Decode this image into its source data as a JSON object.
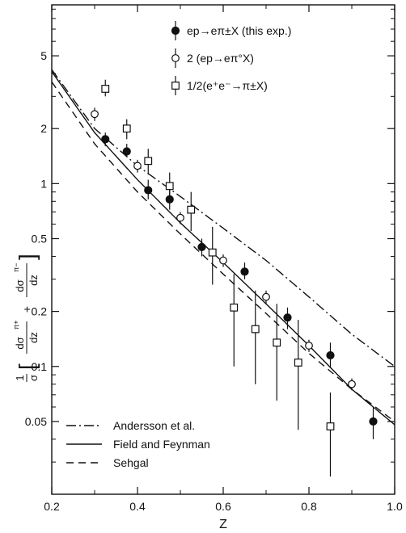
{
  "chart_data": {
    "type": "scatter",
    "xlabel": "Z",
    "ylabel": "1/σ [dσ^π+/dz + dσ^π−/dz]",
    "ylabel_parts": {
      "prefix_num": "1",
      "prefix_den": "σ",
      "term1_num": "dσ",
      "term1_sup": "π+",
      "term1_den": "dz",
      "plus": "+",
      "term2_num": "dσ",
      "term2_sup": "π−",
      "term2_den": "dz"
    },
    "xlim": [
      0.2,
      1.0
    ],
    "ylim": [
      0.02,
      9.5
    ],
    "yscale": "log",
    "xticks": [
      0.2,
      0.4,
      0.6,
      0.8,
      1.0
    ],
    "xtick_labels": [
      "0.2",
      "0.4",
      "0.6",
      "0.8",
      "1.0"
    ],
    "yticks": [
      5,
      2,
      1,
      0.5,
      0.2,
      0.1,
      0.05
    ],
    "ytick_labels": [
      "5",
      "2",
      "1",
      "0.5",
      "0.2",
      "0.1",
      "0.05"
    ],
    "grid": false,
    "series": [
      {
        "name": "ep→eπ±X (this exp.)",
        "marker": "filled-circle",
        "x": [
          0.325,
          0.375,
          0.425,
          0.475,
          0.55,
          0.65,
          0.75,
          0.85,
          0.95
        ],
        "y": [
          1.75,
          1.5,
          0.92,
          0.82,
          0.45,
          0.33,
          0.185,
          0.115,
          0.05
        ],
        "err_low": [
          1.6,
          1.4,
          0.82,
          0.72,
          0.4,
          0.3,
          0.16,
          0.098,
          0.04
        ],
        "err_high": [
          1.9,
          1.65,
          1.05,
          0.92,
          0.5,
          0.37,
          0.21,
          0.135,
          0.06
        ]
      },
      {
        "name": "2 (ep→eπ°X)",
        "marker": "open-circle",
        "x": [
          0.3,
          0.4,
          0.5,
          0.6,
          0.7,
          0.8,
          0.9
        ],
        "y": [
          2.4,
          1.25,
          0.65,
          0.38,
          0.24,
          0.13,
          0.08
        ],
        "err_low": [
          2.2,
          1.15,
          0.6,
          0.35,
          0.22,
          0.12,
          0.074
        ],
        "err_high": [
          2.6,
          1.35,
          0.7,
          0.41,
          0.26,
          0.14,
          0.086
        ]
      },
      {
        "name": "1/2(e⁺e⁻→π±X)",
        "marker": "open-square",
        "x": [
          0.325,
          0.375,
          0.425,
          0.475,
          0.525,
          0.575,
          0.625,
          0.675,
          0.725,
          0.775,
          0.85
        ],
        "y": [
          3.3,
          2.0,
          1.33,
          0.97,
          0.72,
          0.42,
          0.21,
          0.16,
          0.135,
          0.105,
          0.047
        ],
        "err_low": [
          3.0,
          1.75,
          1.12,
          0.8,
          0.55,
          0.28,
          0.1,
          0.08,
          0.065,
          0.045,
          0.025
        ],
        "err_high": [
          3.7,
          2.25,
          1.55,
          1.15,
          0.9,
          0.58,
          0.32,
          0.26,
          0.22,
          0.18,
          0.072
        ]
      }
    ],
    "curves": [
      {
        "name": "Andersson et al.",
        "style": "dash-dot",
        "x": [
          0.2,
          0.3,
          0.4,
          0.5,
          0.6,
          0.7,
          0.8,
          0.9,
          1.0
        ],
        "y": [
          4.2,
          2.0,
          1.25,
          0.85,
          0.57,
          0.38,
          0.24,
          0.15,
          0.1
        ]
      },
      {
        "name": "Field and Feynman",
        "style": "solid",
        "x": [
          0.2,
          0.3,
          0.4,
          0.5,
          0.6,
          0.7,
          0.8,
          0.9,
          1.0
        ],
        "y": [
          4.1,
          1.9,
          1.05,
          0.61,
          0.37,
          0.22,
          0.13,
          0.075,
          0.048
        ]
      },
      {
        "name": "Sehgal",
        "style": "dashed",
        "x": [
          0.2,
          0.3,
          0.4,
          0.5,
          0.6,
          0.7,
          0.8,
          0.9,
          1.0
        ],
        "y": [
          3.6,
          1.65,
          0.9,
          0.53,
          0.32,
          0.195,
          0.118,
          0.075,
          0.05
        ]
      }
    ],
    "legend_points": {
      "placement": "top-right",
      "entries": [
        {
          "marker": "filled-circle",
          "label": "ep→eπ±X (this exp.)"
        },
        {
          "marker": "open-circle",
          "label": "2 (ep→eπ°X)"
        },
        {
          "marker": "open-square",
          "label": "1/2(e⁺e⁻→π±X)"
        }
      ]
    },
    "legend_curves": {
      "placement": "bottom-left",
      "entries": [
        {
          "style": "dash-dot",
          "label": "Andersson et al."
        },
        {
          "style": "solid",
          "label": "Field and Feynman"
        },
        {
          "style": "dashed",
          "label": "Sehgal"
        }
      ]
    }
  }
}
